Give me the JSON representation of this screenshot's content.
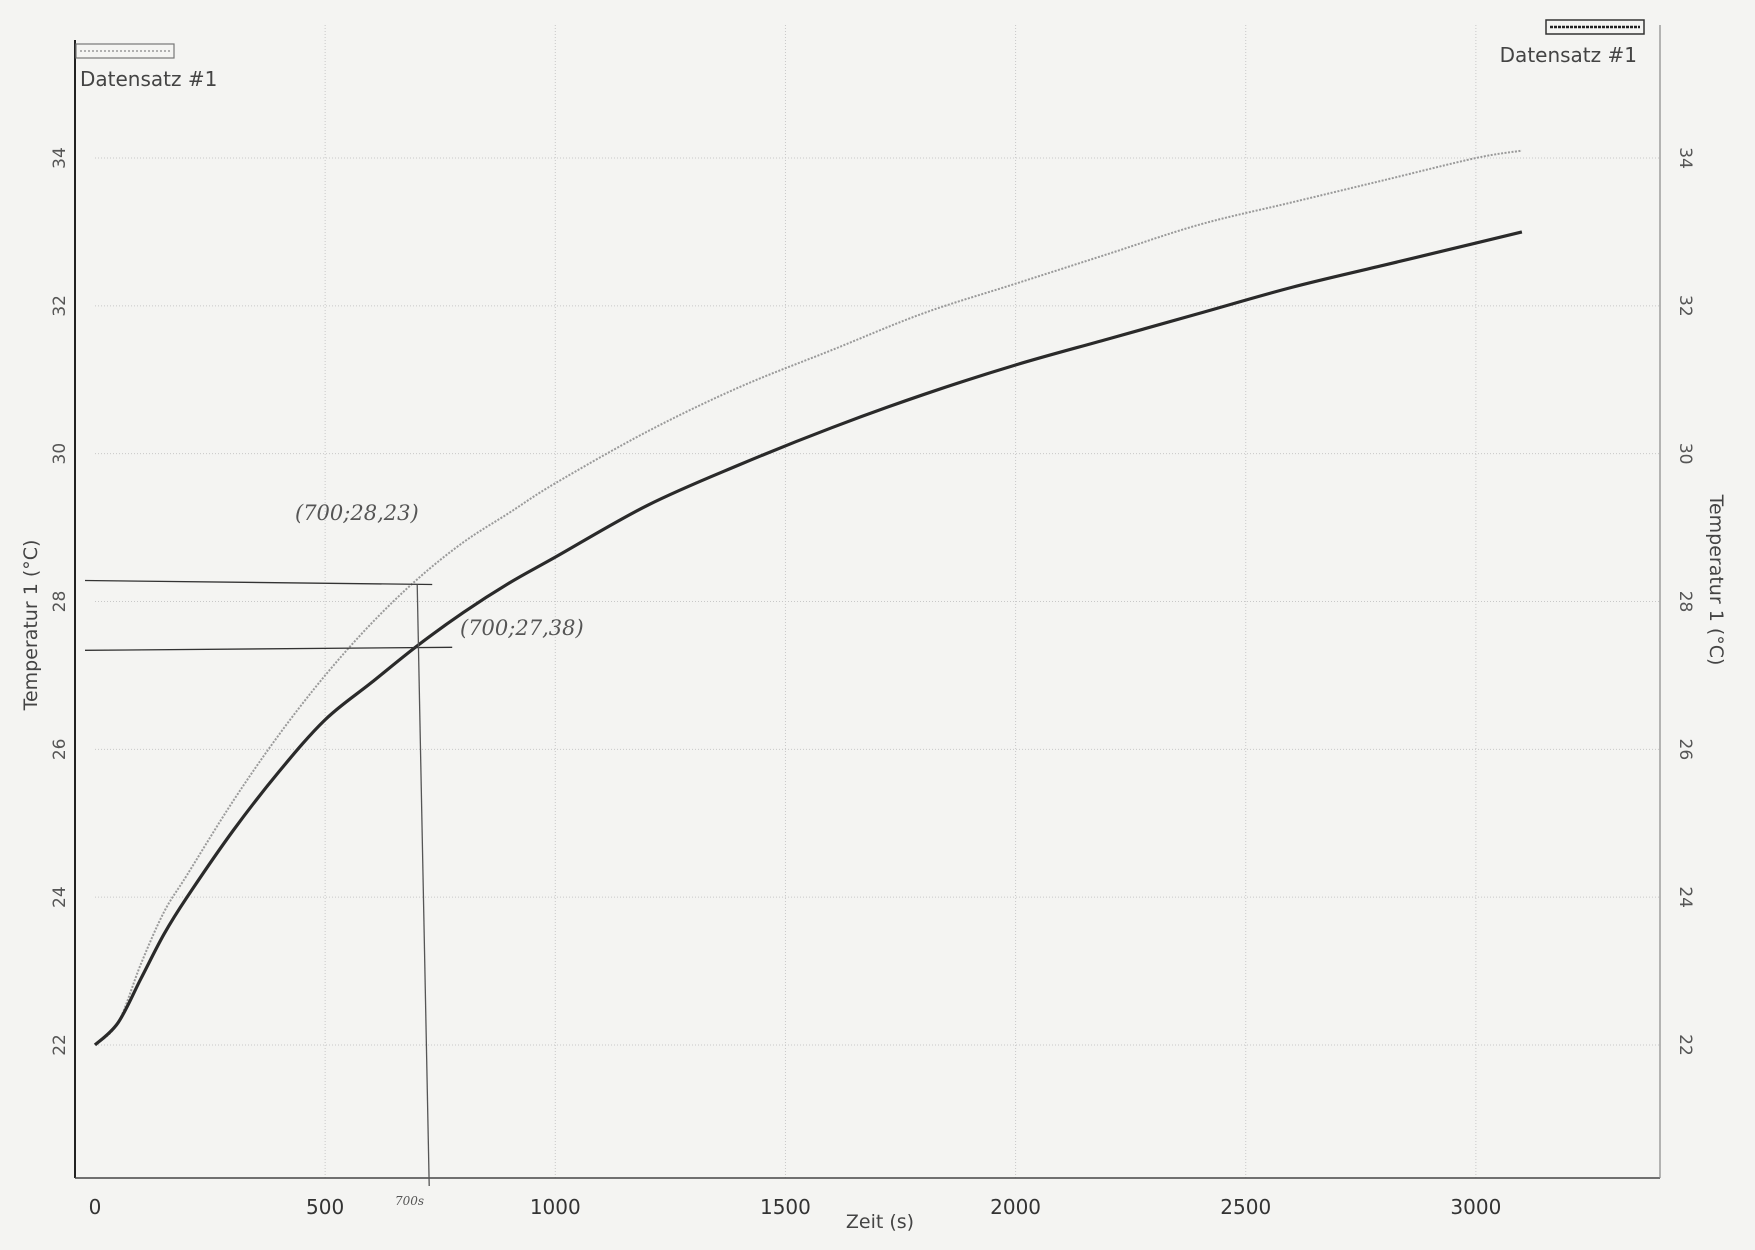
{
  "chart_data": {
    "type": "line",
    "xlabel": "Zeit (s)",
    "ylabel_left": "Temperatur 1 (°C)",
    "ylabel_right": "Temperatur 1 (°C)",
    "xlim": [
      0,
      3400
    ],
    "ylim": [
      20.2,
      35.8
    ],
    "x_ticks": [
      "0",
      "500",
      "1000",
      "1500",
      "2000",
      "2500",
      "3000"
    ],
    "y_ticks_left": [
      "22",
      "24",
      "26",
      "28",
      "30",
      "32",
      "34"
    ],
    "y_ticks_right": [
      "22",
      "24",
      "26",
      "28",
      "30",
      "32",
      "34"
    ],
    "grid": true,
    "legend_left": "Datensatz #1",
    "legend_right": "Datensatz #1",
    "series": [
      {
        "style": "dotted-light",
        "color": "#9a9a9a",
        "x": [
          0,
          50,
          100,
          150,
          200,
          300,
          400,
          500,
          600,
          700,
          800,
          900,
          1000,
          1200,
          1400,
          1600,
          1800,
          2000,
          2200,
          2400,
          2600,
          2800,
          3000,
          3100
        ],
        "y": [
          22.0,
          22.3,
          23.1,
          23.8,
          24.3,
          25.3,
          26.2,
          27.0,
          27.7,
          28.3,
          28.8,
          29.2,
          29.6,
          30.3,
          30.9,
          31.4,
          31.9,
          32.3,
          32.7,
          33.1,
          33.4,
          33.7,
          34.0,
          34.1
        ]
      },
      {
        "style": "solid-dark",
        "color": "#2a2a2a",
        "x": [
          0,
          50,
          100,
          150,
          200,
          300,
          400,
          500,
          600,
          700,
          800,
          900,
          1000,
          1200,
          1400,
          1600,
          1800,
          2000,
          2200,
          2400,
          2600,
          2800,
          3000,
          3100
        ],
        "y": [
          22.0,
          22.3,
          22.9,
          23.5,
          24.0,
          24.9,
          25.7,
          26.4,
          26.9,
          27.4,
          27.85,
          28.25,
          28.6,
          29.3,
          29.85,
          30.35,
          30.8,
          31.2,
          31.55,
          31.9,
          32.25,
          32.55,
          32.85,
          33.0
        ]
      }
    ],
    "annotations": {
      "upper_point": "(700;28,23)",
      "lower_point": "(700;27,38)",
      "x_mark": "700s",
      "x_mark_value": 700,
      "upper_y": 28.23,
      "lower_y": 27.38
    }
  }
}
